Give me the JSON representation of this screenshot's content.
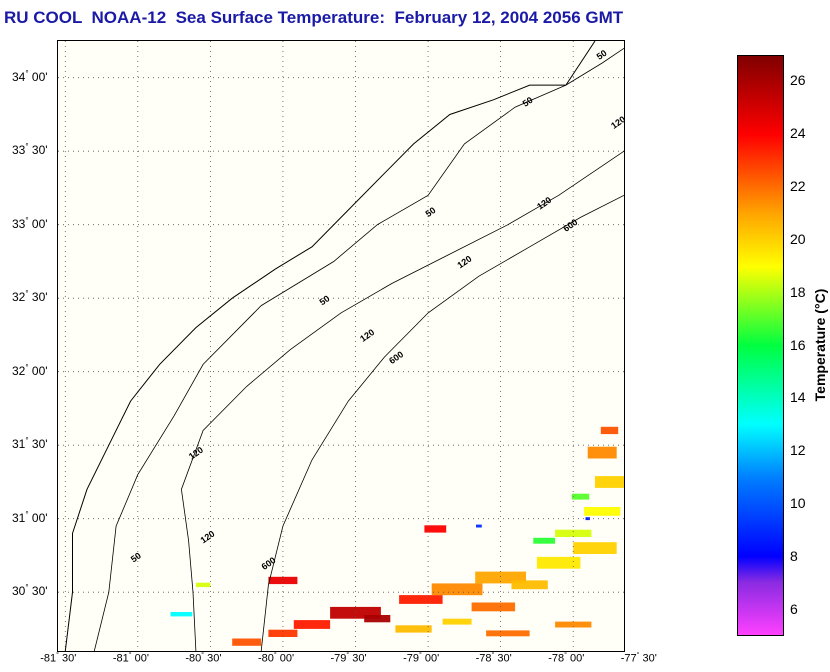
{
  "title": "RU COOL  NOAA-12  Sea Surface Temperature:  February 12, 2004 2056 GMT",
  "map": {
    "lat_range": [
      30.1,
      34.25
    ],
    "lon_range": [
      -81.55,
      -77.65
    ],
    "lat_ticks": [
      {
        "value": 34.0,
        "deg": "34",
        "min": "00'"
      },
      {
        "value": 33.5,
        "deg": "33",
        "min": "30'"
      },
      {
        "value": 33.0,
        "deg": "33",
        "min": "00'"
      },
      {
        "value": 32.5,
        "deg": "32",
        "min": "30'"
      },
      {
        "value": 32.0,
        "deg": "32",
        "min": "00'"
      },
      {
        "value": 31.5,
        "deg": "31",
        "min": "30'"
      },
      {
        "value": 31.0,
        "deg": "31",
        "min": "00'"
      },
      {
        "value": 30.5,
        "deg": "30",
        "min": "30'"
      }
    ],
    "lon_ticks": [
      {
        "value": -81.5,
        "deg": "-81",
        "min": "30'"
      },
      {
        "value": -81.0,
        "deg": "-81",
        "min": "00'"
      },
      {
        "value": -80.5,
        "deg": "-80",
        "min": "30'"
      },
      {
        "value": -80.0,
        "deg": "-80",
        "min": "00'"
      },
      {
        "value": -79.5,
        "deg": "-79",
        "min": "30'"
      },
      {
        "value": -79.0,
        "deg": "-79",
        "min": "00'"
      },
      {
        "value": -78.5,
        "deg": "-78",
        "min": "30'"
      },
      {
        "value": -78.0,
        "deg": "-78",
        "min": "00'"
      },
      {
        "value": -77.5,
        "deg": "-77",
        "min": "30'"
      }
    ],
    "grid": "dotted",
    "isobaths": {
      "labels": [
        "50",
        "120",
        "600"
      ],
      "depth_50": [
        [
          -81.3,
          30.1
        ],
        [
          -81.2,
          30.5
        ],
        [
          -81.15,
          30.95
        ],
        [
          -81.0,
          31.3
        ],
        [
          -80.75,
          31.7
        ],
        [
          -80.55,
          32.05
        ],
        [
          -80.15,
          32.45
        ],
        [
          -79.65,
          32.75
        ],
        [
          -79.35,
          33.0
        ],
        [
          -79.0,
          33.2
        ],
        [
          -78.75,
          33.55
        ],
        [
          -78.4,
          33.8
        ],
        [
          -78.05,
          33.95
        ],
        [
          -77.8,
          34.1
        ],
        [
          -77.65,
          34.2
        ]
      ],
      "depth_120": [
        [
          -80.6,
          30.1
        ],
        [
          -80.62,
          30.5
        ],
        [
          -80.65,
          30.85
        ],
        [
          -80.7,
          31.2
        ],
        [
          -80.55,
          31.6
        ],
        [
          -80.25,
          31.9
        ],
        [
          -79.95,
          32.15
        ],
        [
          -79.6,
          32.4
        ],
        [
          -79.25,
          32.6
        ],
        [
          -78.85,
          32.8
        ],
        [
          -78.45,
          33.0
        ],
        [
          -78.1,
          33.2
        ],
        [
          -77.8,
          33.4
        ],
        [
          -77.65,
          33.5
        ]
      ],
      "depth_600": [
        [
          -80.15,
          30.1
        ],
        [
          -80.1,
          30.55
        ],
        [
          -80.0,
          30.95
        ],
        [
          -79.8,
          31.4
        ],
        [
          -79.55,
          31.8
        ],
        [
          -79.3,
          32.1
        ],
        [
          -79.0,
          32.4
        ],
        [
          -78.65,
          32.65
        ],
        [
          -78.3,
          32.85
        ],
        [
          -77.95,
          33.05
        ],
        [
          -77.65,
          33.2
        ]
      ],
      "label_positions": [
        {
          "text": "50",
          "lon": -81.03,
          "lat": 30.7
        },
        {
          "text": "50",
          "lon": -79.73,
          "lat": 32.45
        },
        {
          "text": "50",
          "lon": -79.0,
          "lat": 33.05
        },
        {
          "text": "50",
          "lon": -78.33,
          "lat": 33.8
        },
        {
          "text": "50",
          "lon": -77.82,
          "lat": 34.12
        },
        {
          "text": "120",
          "lon": -80.55,
          "lat": 30.83
        },
        {
          "text": "120",
          "lon": -80.63,
          "lat": 31.4
        },
        {
          "text": "120",
          "lon": -79.45,
          "lat": 32.2
        },
        {
          "text": "120",
          "lon": -78.78,
          "lat": 32.7
        },
        {
          "text": "120",
          "lon": -78.23,
          "lat": 33.1
        },
        {
          "text": "120",
          "lon": -77.72,
          "lat": 33.65
        },
        {
          "text": "600",
          "lon": -80.13,
          "lat": 30.65
        },
        {
          "text": "600",
          "lon": -79.25,
          "lat": 32.05
        },
        {
          "text": "600",
          "lon": -78.05,
          "lat": 32.95
        }
      ]
    },
    "coastline": [
      [
        -81.5,
        30.1
      ],
      [
        -81.45,
        30.5
      ],
      [
        -81.45,
        30.9
      ],
      [
        -81.35,
        31.2
      ],
      [
        -81.2,
        31.5
      ],
      [
        -81.05,
        31.8
      ],
      [
        -80.85,
        32.05
      ],
      [
        -80.6,
        32.3
      ],
      [
        -80.35,
        32.5
      ],
      [
        -80.05,
        32.7
      ],
      [
        -79.8,
        32.85
      ],
      [
        -79.55,
        33.1
      ],
      [
        -79.3,
        33.35
      ],
      [
        -79.1,
        33.55
      ],
      [
        -78.85,
        33.75
      ],
      [
        -78.55,
        33.85
      ],
      [
        -78.3,
        33.95
      ],
      [
        -78.05,
        33.95
      ],
      [
        -77.95,
        34.1
      ],
      [
        -77.85,
        34.25
      ]
    ],
    "sst_patches": [
      {
        "lon": -79.5,
        "lat": 30.36,
        "temp": 25.5,
        "w": 0.35,
        "h": 0.08
      },
      {
        "lon": -79.35,
        "lat": 30.32,
        "temp": 26.0,
        "w": 0.18,
        "h": 0.05
      },
      {
        "lon": -79.8,
        "lat": 30.28,
        "temp": 23.5,
        "w": 0.25,
        "h": 0.06
      },
      {
        "lon": -80.0,
        "lat": 30.22,
        "temp": 23.0,
        "w": 0.2,
        "h": 0.05
      },
      {
        "lon": -80.25,
        "lat": 30.16,
        "temp": 22.5,
        "w": 0.2,
        "h": 0.05
      },
      {
        "lon": -80.0,
        "lat": 30.58,
        "temp": 24.5,
        "w": 0.2,
        "h": 0.05
      },
      {
        "lon": -79.05,
        "lat": 30.45,
        "temp": 23.5,
        "w": 0.3,
        "h": 0.06
      },
      {
        "lon": -78.8,
        "lat": 30.52,
        "temp": 21.5,
        "w": 0.35,
        "h": 0.08
      },
      {
        "lon": -78.5,
        "lat": 30.6,
        "temp": 21.0,
        "w": 0.35,
        "h": 0.08
      },
      {
        "lon": -78.3,
        "lat": 30.55,
        "temp": 20.5,
        "w": 0.25,
        "h": 0.06
      },
      {
        "lon": -78.55,
        "lat": 30.4,
        "temp": 22.0,
        "w": 0.3,
        "h": 0.06
      },
      {
        "lon": -78.1,
        "lat": 30.7,
        "temp": 19.5,
        "w": 0.3,
        "h": 0.08
      },
      {
        "lon": -77.85,
        "lat": 30.8,
        "temp": 20.0,
        "w": 0.3,
        "h": 0.08
      },
      {
        "lon": -78.0,
        "lat": 30.9,
        "temp": 18.5,
        "w": 0.25,
        "h": 0.05
      },
      {
        "lon": -77.8,
        "lat": 31.05,
        "temp": 19.0,
        "w": 0.25,
        "h": 0.06
      },
      {
        "lon": -77.75,
        "lat": 31.25,
        "temp": 20.0,
        "w": 0.2,
        "h": 0.08
      },
      {
        "lon": -77.8,
        "lat": 31.45,
        "temp": 21.5,
        "w": 0.2,
        "h": 0.08
      },
      {
        "lon": -77.75,
        "lat": 31.6,
        "temp": 22.5,
        "w": 0.12,
        "h": 0.05
      },
      {
        "lon": -78.95,
        "lat": 30.93,
        "temp": 24.0,
        "w": 0.15,
        "h": 0.05
      },
      {
        "lon": -78.45,
        "lat": 30.22,
        "temp": 22.0,
        "w": 0.3,
        "h": 0.04
      },
      {
        "lon": -78.0,
        "lat": 30.28,
        "temp": 21.5,
        "w": 0.25,
        "h": 0.04
      },
      {
        "lon": -79.1,
        "lat": 30.25,
        "temp": 20.5,
        "w": 0.25,
        "h": 0.05
      },
      {
        "lon": -77.95,
        "lat": 31.15,
        "temp": 17.0,
        "w": 0.12,
        "h": 0.04
      },
      {
        "lon": -78.2,
        "lat": 30.85,
        "temp": 16.5,
        "w": 0.15,
        "h": 0.04
      },
      {
        "lon": -78.8,
        "lat": 30.3,
        "temp": 20.0,
        "w": 0.2,
        "h": 0.04
      },
      {
        "lon": -80.7,
        "lat": 30.35,
        "temp": 13.0,
        "w": 0.15,
        "h": 0.03
      },
      {
        "lon": -80.55,
        "lat": 30.55,
        "temp": 18.5,
        "w": 0.1,
        "h": 0.03
      },
      {
        "lon": -78.65,
        "lat": 30.95,
        "temp": 9.0,
        "w": 0.04,
        "h": 0.02
      },
      {
        "lon": -77.9,
        "lat": 31.0,
        "temp": 8.5,
        "w": 0.03,
        "h": 0.02
      }
    ]
  },
  "colorbar": {
    "label": "Temperature (°C)",
    "range": [
      5,
      27
    ],
    "ticks": [
      "6",
      "8",
      "10",
      "12",
      "14",
      "16",
      "18",
      "20",
      "22",
      "24",
      "26"
    ],
    "tick_values": [
      6,
      8,
      10,
      12,
      14,
      16,
      18,
      20,
      22,
      24,
      26
    ],
    "color_stops": [
      {
        "t": 5,
        "color": "#ff40ff"
      },
      {
        "t": 7,
        "color": "#8a2be2"
      },
      {
        "t": 8,
        "color": "#0000ff"
      },
      {
        "t": 11,
        "color": "#0080ff"
      },
      {
        "t": 13,
        "color": "#00ffff"
      },
      {
        "t": 16,
        "color": "#00ff40"
      },
      {
        "t": 19,
        "color": "#ffff00"
      },
      {
        "t": 21,
        "color": "#ffa500"
      },
      {
        "t": 24,
        "color": "#ff0000"
      },
      {
        "t": 27,
        "color": "#800000"
      }
    ]
  }
}
